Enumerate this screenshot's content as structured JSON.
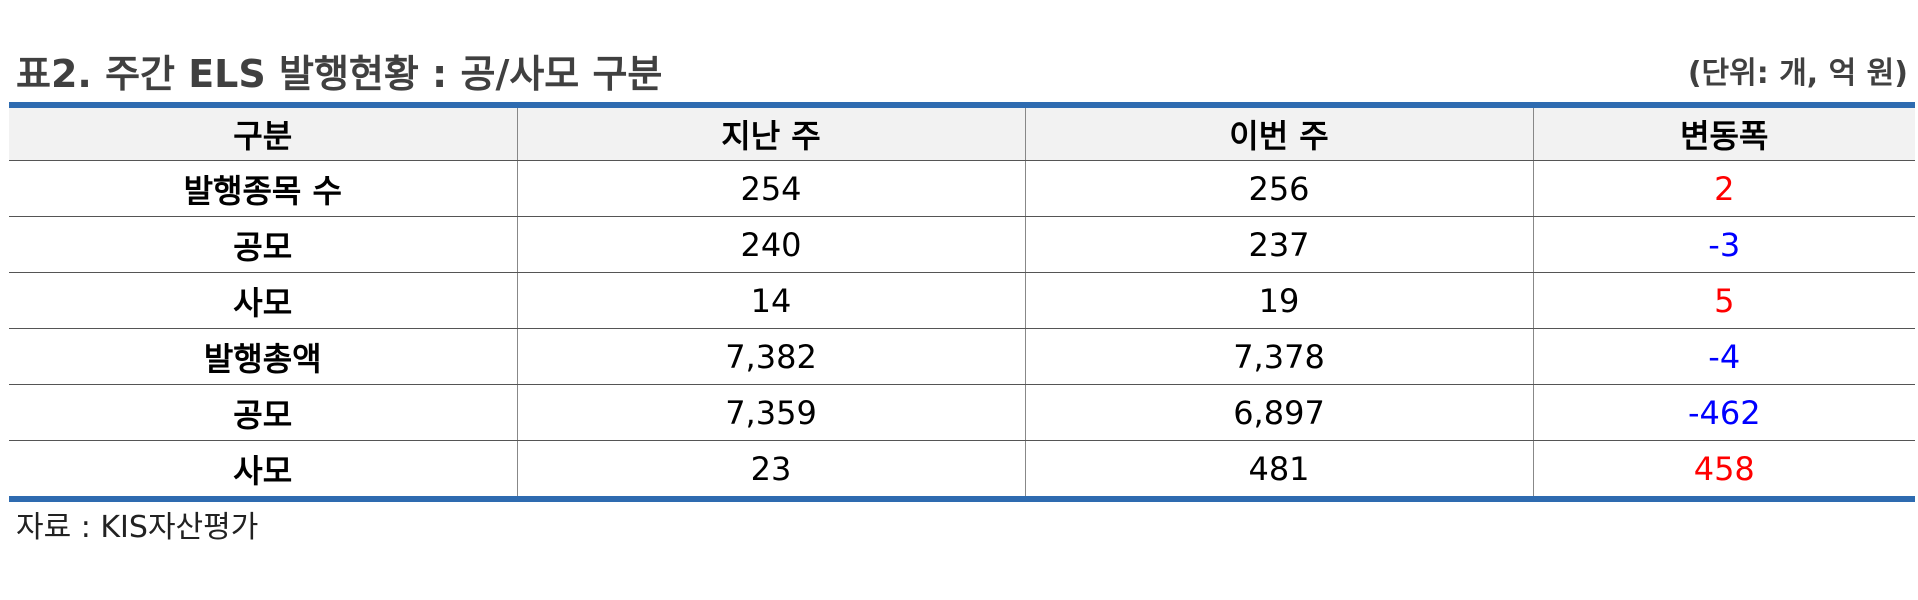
{
  "title": "표2. 주간 ELS 발행현황 : 공/사모 구분",
  "unit": "(단위: 개, 억 원)",
  "table": {
    "headers": [
      "구분",
      "지난 주",
      "이번 주",
      "변동폭"
    ],
    "rows": [
      {
        "label": "발행종목 수",
        "last_week": "254",
        "this_week": "256",
        "change": "2"
      },
      {
        "label": "공모",
        "last_week": "240",
        "this_week": "237",
        "change": "-3"
      },
      {
        "label": "사모",
        "last_week": "14",
        "this_week": "19",
        "change": "5"
      },
      {
        "label": "발행총액",
        "last_week": "7,382",
        "this_week": "7,378",
        "change": "-4"
      },
      {
        "label": "공모",
        "last_week": "7,359",
        "this_week": "6,897",
        "change": "-462"
      },
      {
        "label": "사모",
        "last_week": "23",
        "this_week": "481",
        "change": "458"
      }
    ]
  },
  "source": "자료 : KIS자산평가",
  "colors": {
    "accent_rule": "#2e6bb0",
    "positive": "#ff0000",
    "negative": "#0000ff"
  }
}
